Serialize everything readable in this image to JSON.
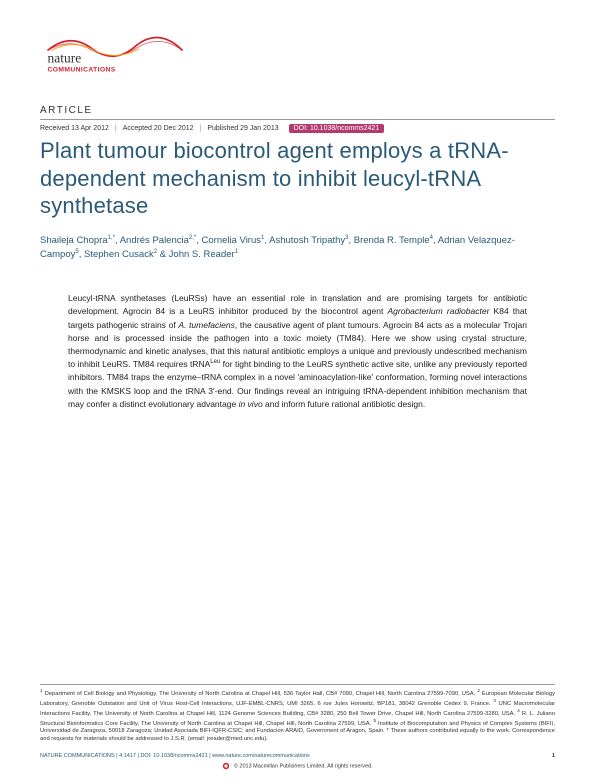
{
  "journal": {
    "name_line1": "nature",
    "name_line2": "COMMUNICATIONS"
  },
  "article_label": "ARTICLE",
  "dates": {
    "received": "Received 13 Apr 2012",
    "accepted": "Accepted 20 Dec 2012",
    "published": "Published 29 Jan 2013"
  },
  "doi": "DOI: 10.1038/ncomms2421",
  "title": "Plant tumour biocontrol agent employs a tRNA-dependent mechanism to inhibit leucyl-tRNA synthetase",
  "authors_html": "Shaileja Chopra<sup>1,*</sup>, Andrés Palencia<sup>2,*</sup>, Cornelia Virus<sup>1</sup>, Ashutosh Tripathy<sup>3</sup>, Brenda R. Temple<sup>4</sup>, Adrian Velazquez-Campoy<sup>5</sup>, Stephen Cusack<sup>2</sup> & John S. Reader<sup>1</sup>",
  "abstract_html": "Leucyl-tRNA synthetases (LeuRSs) have an essential role in translation and are promising targets for antibiotic development. Agrocin 84 is a LeuRS inhibitor produced by the biocontrol agent <i>Agrobacterium radiobacter</i> K84 that targets pathogenic strains of <i>A. tumefaciens</i>, the causative agent of plant tumours. Agrocin 84 acts as a molecular Trojan horse and is processed inside the pathogen into a toxic moiety (TM84). Here we show using crystal structure, thermodynamic and kinetic analyses, that this natural antibiotic employs a unique and previously undescribed mechanism to inhibit LeuRS. TM84 requires tRNA<sup>Leu</sup> for tight binding to the LeuRS synthetic active site, unlike any previously reported inhibitors. TM84 traps the enzyme–tRNA complex in a novel 'aminoacylation-like' conformation, forming novel interactions with the KMSKS loop and the tRNA 3'-end. Our findings reveal an intriguing tRNA-dependent inhibition mechanism that may confer a distinct evolutionary advantage <i>in vivo</i> and inform future rational antibiotic design.",
  "affiliations_html": "<sup>1</sup> Department of Cell Biology and Physiology, The University of North Carolina at Chapel Hill, 536 Taylor Hall, CB# 7090, Chapel Hill, North Carolina 27599-7090, USA. <sup>2</sup> European Molecular Biology Laboratory, Grenoble Outstation and Unit of Virus Host-Cell Interactions, UJF-EMBL-CNRS, UMI 3265, 6 rue Jules Horowitz, BP181, 38042 Grenoble Cedex 9, France. <sup>3</sup> UNC Macromolecular Interactions Facility, The University of North Carolina at Chapel Hill, 1124 Genome Sciences Building, CB# 3280, 250 Bell Tower Drive, Chapel Hill, North Carolina 27599-3280, USA. <sup>4</sup> R. L. Juliano Structural Bioinformatics Core Facility, The University of North Carolina at Chapel Hill, Chapel Hill, North Carolina 27599, USA. <sup>5</sup> Institute of Biocomputation and Physics of Complex Systems (BIFI), Universidad de Zaragoza, 50018 Zaragoza; Unidad Asociada BIFI-IQFR-CSIC; and Fundacion ARAID, Government of Aragon, Spain. * These authors contributed equally to the work. Correspondence and requests for materials should be addressed to J.S.R. (email: jreader@med.unc.edu).",
  "footer": {
    "citation": "NATURE COMMUNICATIONS | 4:1417 | DOI: 10.1038/ncomms2421 | www.nature.com/naturecommunications",
    "page": "1",
    "rights": "© 2013 Macmillan Publishers Limited. All rights reserved."
  },
  "colors": {
    "brand_blue": "#2a5a77",
    "doi_bg": "#b33a6f",
    "logo_red": "#d3222a",
    "logo_orange": "#f5a623"
  }
}
